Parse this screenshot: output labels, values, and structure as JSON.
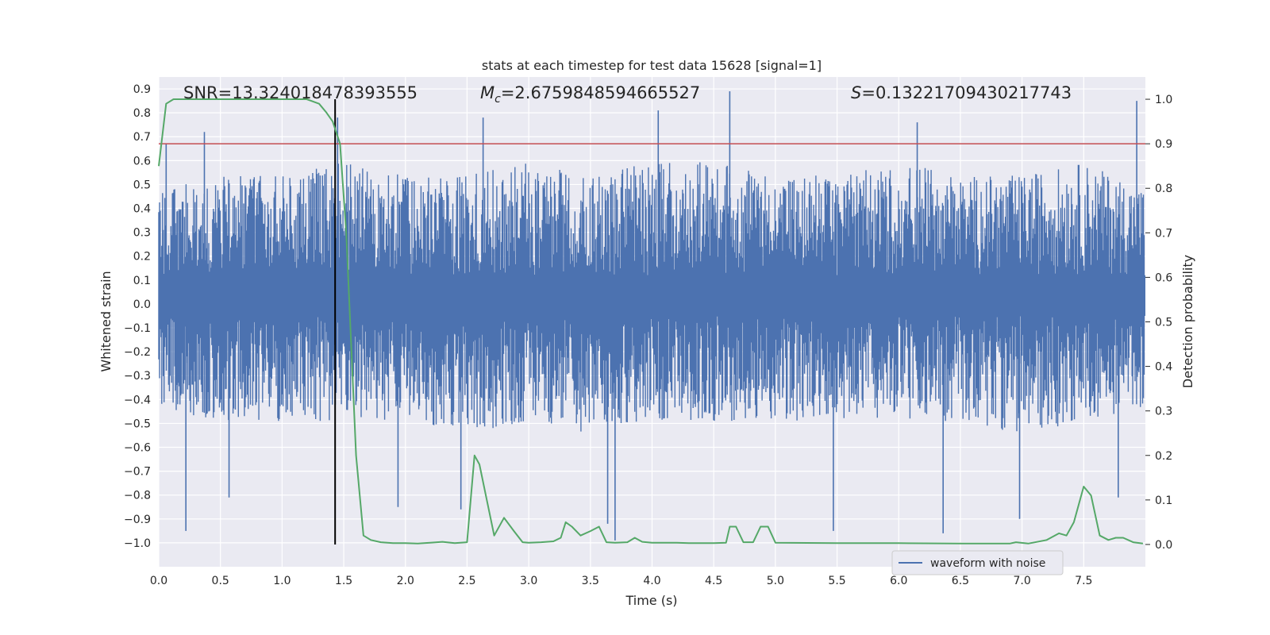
{
  "chart_data": {
    "type": "line",
    "title": "stats at each timestep for test data 15628 [signal=1]",
    "xlabel": "Time (s)",
    "ylabel": "Whitened strain",
    "y2label": "Detection probability",
    "xlim": [
      0.0,
      8.0
    ],
    "ylim": [
      -1.1,
      0.95
    ],
    "y2lim": [
      -0.05,
      1.05
    ],
    "xticks": [
      "0.0",
      "0.5",
      "1.0",
      "1.5",
      "2.0",
      "2.5",
      "3.0",
      "3.5",
      "4.0",
      "4.5",
      "5.0",
      "5.5",
      "6.0",
      "6.5",
      "7.0",
      "7.5"
    ],
    "yticks": [
      "0.9",
      "0.8",
      "0.7",
      "0.6",
      "0.5",
      "0.4",
      "0.3",
      "0.2",
      "0.1",
      "0.0",
      "-0.1",
      "-0.2",
      "-0.3",
      "-0.4",
      "-0.5",
      "-0.6",
      "-0.7",
      "-0.8",
      "-0.9",
      "-1.0"
    ],
    "y2ticks": [
      "1.0",
      "0.9",
      "0.8",
      "0.7",
      "0.6",
      "0.5",
      "0.4",
      "0.3",
      "0.2",
      "0.1",
      "0.0"
    ],
    "grid": true,
    "legend_position": "bottom-right",
    "annotations": {
      "snr": "SNR=13.324018478393555",
      "mc_symbol": "M",
      "mc_subscript": "c",
      "mc_value": "=2.6759848594665527",
      "s_symbol": "S",
      "s_value": "=0.13221709430217743"
    },
    "threshold": {
      "value": 0.9,
      "axis": "y2",
      "color": "#c44e52"
    },
    "marker_line": {
      "x": 1.43,
      "color": "#000000"
    },
    "series": [
      {
        "name": "waveform with noise",
        "axis": "y",
        "color": "#4c72b0",
        "envelope_description_x": [
          0.0,
          0.5,
          1.0,
          1.5,
          2.0,
          2.5,
          3.0,
          3.5,
          4.0,
          4.5,
          5.0,
          5.5,
          6.0,
          6.5,
          7.0,
          7.5,
          7.99
        ],
        "typical_max": [
          0.45,
          0.5,
          0.5,
          0.55,
          0.5,
          0.5,
          0.55,
          0.5,
          0.55,
          0.55,
          0.5,
          0.5,
          0.55,
          0.5,
          0.5,
          0.55,
          0.45
        ],
        "typical_min": [
          -0.4,
          -0.45,
          -0.45,
          -0.45,
          -0.45,
          -0.5,
          -0.45,
          -0.5,
          -0.45,
          -0.45,
          -0.45,
          -0.45,
          -0.45,
          -0.45,
          -0.5,
          -0.45,
          -0.4
        ],
        "peaks": [
          [
            0.06,
            0.67
          ],
          [
            0.37,
            0.72
          ],
          [
            1.45,
            0.78
          ],
          [
            2.63,
            0.78
          ],
          [
            4.05,
            0.81
          ],
          [
            4.63,
            0.89
          ],
          [
            6.15,
            0.76
          ],
          [
            7.93,
            0.85
          ]
        ],
        "troughs": [
          [
            0.22,
            -0.95
          ],
          [
            0.57,
            -0.81
          ],
          [
            1.94,
            -0.85
          ],
          [
            2.45,
            -0.86
          ],
          [
            3.64,
            -0.92
          ],
          [
            3.7,
            -0.99
          ],
          [
            5.47,
            -0.95
          ],
          [
            6.36,
            -0.96
          ],
          [
            6.98,
            -0.9
          ],
          [
            7.78,
            -0.81
          ]
        ]
      },
      {
        "name": "",
        "axis": "y2",
        "color": "#55a868",
        "x": [
          0.0,
          0.06,
          0.12,
          0.2,
          0.4,
          0.8,
          1.2,
          1.3,
          1.36,
          1.41,
          1.47,
          1.52,
          1.56,
          1.6,
          1.66,
          1.72,
          1.8,
          1.9,
          2.0,
          2.1,
          2.2,
          2.3,
          2.4,
          2.5,
          2.56,
          2.6,
          2.66,
          2.72,
          2.8,
          2.88,
          2.95,
          3.0,
          3.1,
          3.2,
          3.26,
          3.3,
          3.35,
          3.42,
          3.5,
          3.57,
          3.63,
          3.7,
          3.8,
          3.86,
          3.92,
          4.0,
          4.1,
          4.2,
          4.3,
          4.5,
          4.6,
          4.63,
          4.68,
          4.74,
          4.82,
          4.88,
          4.94,
          5.0,
          5.5,
          6.0,
          6.5,
          6.9,
          6.95,
          7.05,
          7.2,
          7.3,
          7.36,
          7.42,
          7.5,
          7.56,
          7.63,
          7.7,
          7.76,
          7.82,
          7.9,
          7.98
        ],
        "values": [
          0.85,
          0.99,
          1.0,
          1.0,
          1.0,
          1.0,
          1.0,
          0.99,
          0.97,
          0.95,
          0.9,
          0.7,
          0.45,
          0.2,
          0.02,
          0.01,
          0.005,
          0.003,
          0.003,
          0.002,
          0.004,
          0.006,
          0.003,
          0.005,
          0.2,
          0.18,
          0.1,
          0.02,
          0.06,
          0.03,
          0.005,
          0.004,
          0.005,
          0.007,
          0.015,
          0.05,
          0.04,
          0.02,
          0.03,
          0.04,
          0.005,
          0.004,
          0.005,
          0.015,
          0.006,
          0.004,
          0.004,
          0.004,
          0.003,
          0.003,
          0.004,
          0.04,
          0.04,
          0.005,
          0.005,
          0.04,
          0.04,
          0.004,
          0.003,
          0.003,
          0.002,
          0.002,
          0.005,
          0.002,
          0.01,
          0.025,
          0.02,
          0.05,
          0.13,
          0.11,
          0.02,
          0.01,
          0.015,
          0.015,
          0.005,
          0.002
        ]
      }
    ]
  }
}
